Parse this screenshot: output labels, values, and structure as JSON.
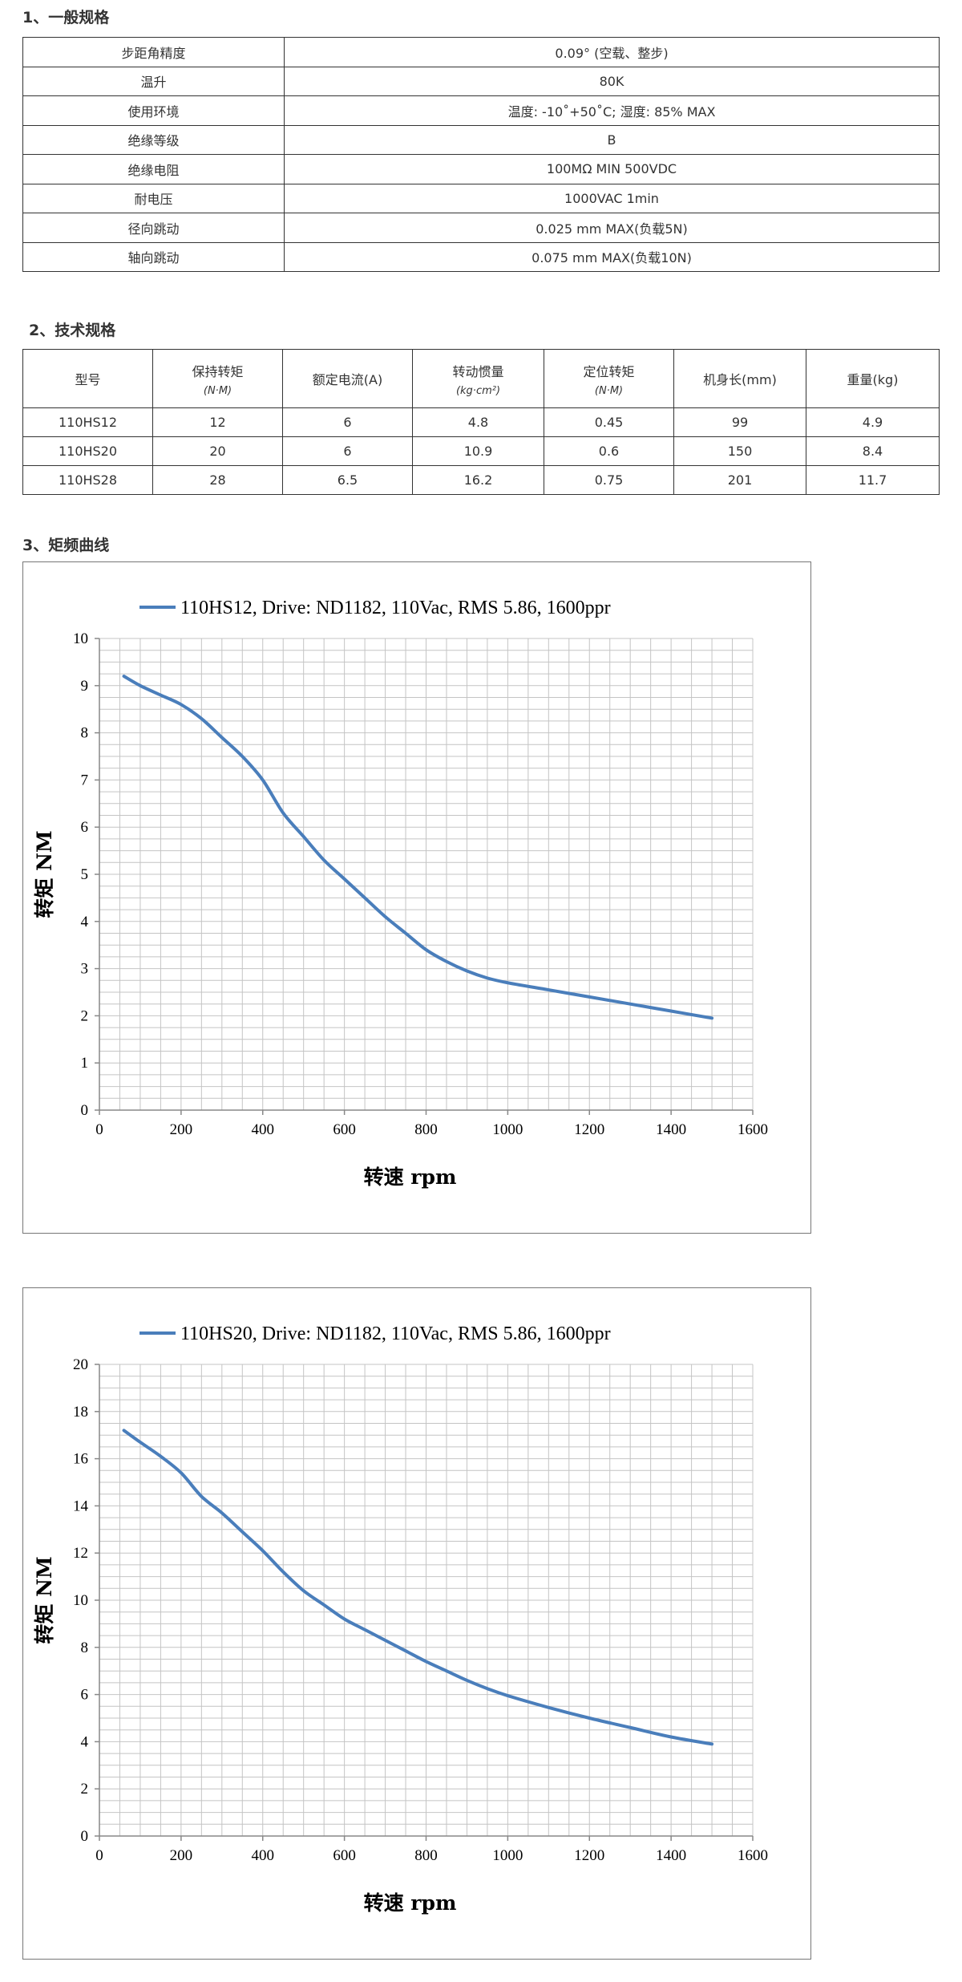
{
  "sections": {
    "general": "1、一般规格",
    "tech": "2、技术规格",
    "curve": "3、矩频曲线"
  },
  "general_specs": [
    {
      "label": "步距角精度",
      "value": "0.09° (空载、整步)"
    },
    {
      "label": "温升",
      "value": "80K"
    },
    {
      "label": "使用环境",
      "value": "温度: -10˚+50˚C; 湿度: 85% MAX"
    },
    {
      "label": "绝缘等级",
      "value": "B"
    },
    {
      "label": "绝缘电阻",
      "value": "100MΩ  MIN 500VDC"
    },
    {
      "label": "耐电压",
      "value": "1000VAC  1min"
    },
    {
      "label": "径向跳动",
      "value": "0.025 mm MAX(负载5N)"
    },
    {
      "label": "轴向跳动",
      "value": "0.075 mm MAX(负载10N)"
    }
  ],
  "tech_specs": {
    "headers": [
      {
        "main": "型号",
        "sub": ""
      },
      {
        "main": "保持转矩",
        "sub": "(N·M)"
      },
      {
        "main": "额定电流(A)",
        "sub": ""
      },
      {
        "main": "转动惯量",
        "sub": "(kg·cm²)"
      },
      {
        "main": "定位转矩",
        "sub": "(N·M)"
      },
      {
        "main": "机身长(mm)",
        "sub": ""
      },
      {
        "main": "重量(kg)",
        "sub": ""
      }
    ],
    "rows": [
      [
        "110HS12",
        "12",
        "6",
        "4.8",
        "0.45",
        "99",
        "4.9"
      ],
      [
        "110HS20",
        "20",
        "6",
        "10.9",
        "0.6",
        "150",
        "8.4"
      ],
      [
        "110HS28",
        "28",
        "6.5",
        "16.2",
        "0.75",
        "201",
        "11.7"
      ]
    ]
  },
  "chart_data": [
    {
      "type": "line",
      "legend": "110HS12, Drive: ND1182, 110Vac, RMS 5.86, 1600ppr",
      "xlabel": "转速 rpm",
      "ylabel": "转矩 NM",
      "xlim": [
        0,
        1600
      ],
      "ylim": [
        0,
        10
      ],
      "xticks": [
        0,
        200,
        400,
        600,
        800,
        1000,
        1200,
        1400,
        1600
      ],
      "yticks": [
        0,
        1,
        2,
        3,
        4,
        5,
        6,
        7,
        8,
        9,
        10
      ],
      "grid": true,
      "legend_position": "top",
      "color": "#4a7ebb",
      "x": [
        60,
        100,
        150,
        200,
        250,
        300,
        350,
        400,
        450,
        500,
        550,
        600,
        650,
        700,
        750,
        800,
        850,
        900,
        950,
        1000,
        1100,
        1200,
        1300,
        1400,
        1500
      ],
      "y": [
        9.2,
        9.0,
        8.8,
        8.6,
        8.3,
        7.9,
        7.5,
        7.0,
        6.3,
        5.8,
        5.3,
        4.9,
        4.5,
        4.1,
        3.75,
        3.4,
        3.15,
        2.95,
        2.8,
        2.7,
        2.55,
        2.4,
        2.25,
        2.1,
        1.95
      ]
    },
    {
      "type": "line",
      "legend": "110HS20, Drive: ND1182, 110Vac, RMS 5.86, 1600ppr",
      "xlabel": "转速 rpm",
      "ylabel": "转矩 NM",
      "xlim": [
        0,
        1600
      ],
      "ylim": [
        0,
        20
      ],
      "xticks": [
        0,
        200,
        400,
        600,
        800,
        1000,
        1200,
        1400,
        1600
      ],
      "yticks": [
        0,
        2,
        4,
        6,
        8,
        10,
        12,
        14,
        16,
        18,
        20
      ],
      "grid": true,
      "legend_position": "top",
      "color": "#4a7ebb",
      "x": [
        60,
        100,
        150,
        200,
        250,
        300,
        350,
        400,
        450,
        500,
        550,
        600,
        650,
        700,
        750,
        800,
        850,
        900,
        950,
        1000,
        1100,
        1200,
        1300,
        1400,
        1500
      ],
      "y": [
        17.2,
        16.7,
        16.1,
        15.4,
        14.4,
        13.7,
        12.9,
        12.1,
        11.2,
        10.4,
        9.8,
        9.2,
        8.75,
        8.3,
        7.85,
        7.4,
        7.0,
        6.6,
        6.25,
        5.95,
        5.45,
        5.0,
        4.6,
        4.2,
        3.9
      ]
    }
  ]
}
